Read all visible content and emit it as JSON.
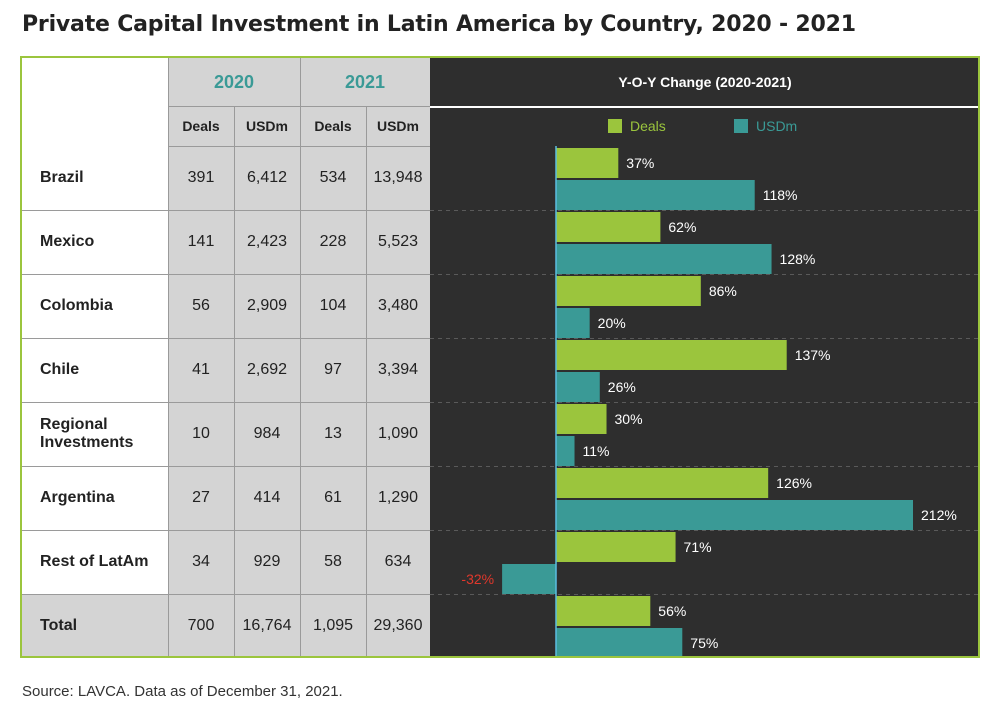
{
  "title": "Private Capital Investment in Latin America by Country, 2020 - 2021",
  "source": "Source: LAVCA. Data as of December 31, 2021.",
  "table": {
    "years": [
      "2020",
      "2021"
    ],
    "subheaders": [
      "Deals",
      "USDm",
      "Deals",
      "USDm"
    ],
    "rows": [
      {
        "country": "Brazil",
        "values": [
          "391",
          "6,412",
          "534",
          "13,948"
        ]
      },
      {
        "country": "Mexico",
        "values": [
          "141",
          "2,423",
          "228",
          "5,523"
        ]
      },
      {
        "country": "Colombia",
        "values": [
          "56",
          "2,909",
          "104",
          "3,480"
        ]
      },
      {
        "country": "Chile",
        "values": [
          "41",
          "2,692",
          "97",
          "3,394"
        ]
      },
      {
        "country": "Regional Investments",
        "values": [
          "10",
          "984",
          "13",
          "1,090"
        ]
      },
      {
        "country": "Argentina",
        "values": [
          "27",
          "414",
          "61",
          "1,290"
        ]
      },
      {
        "country": "Rest of LatAm",
        "values": [
          "34",
          "929",
          "58",
          "634"
        ]
      },
      {
        "country": "Total",
        "values": [
          "700",
          "16,764",
          "1,095",
          "29,360"
        ]
      }
    ]
  },
  "chart_data": {
    "type": "bar",
    "orientation": "horizontal",
    "title": "Y-O-Y Change (2020-2021)",
    "categories": [
      "Brazil",
      "Mexico",
      "Colombia",
      "Chile",
      "Regional Investments",
      "Argentina",
      "Rest of LatAm",
      "Total"
    ],
    "series": [
      {
        "name": "Deals",
        "values": [
          37,
          62,
          86,
          137,
          30,
          126,
          71,
          56
        ],
        "labels": [
          "37%",
          "62%",
          "86%",
          "137%",
          "30%",
          "126%",
          "71%",
          "56%"
        ]
      },
      {
        "name": "USDm",
        "values": [
          118,
          128,
          20,
          26,
          11,
          212,
          -32,
          75
        ],
        "labels": [
          "118%",
          "128%",
          "20%",
          "26%",
          "11%",
          "212%",
          "-32%",
          "75%"
        ]
      }
    ],
    "unit": "%",
    "legend": "top-center",
    "colors": {
      "Deals": "#9bc53d",
      "USDm": "#3a9a96",
      "negative_label": "#e0382c",
      "label": "#ffffff",
      "background": "#2e2e2e",
      "axis": "#5bbde0"
    }
  }
}
